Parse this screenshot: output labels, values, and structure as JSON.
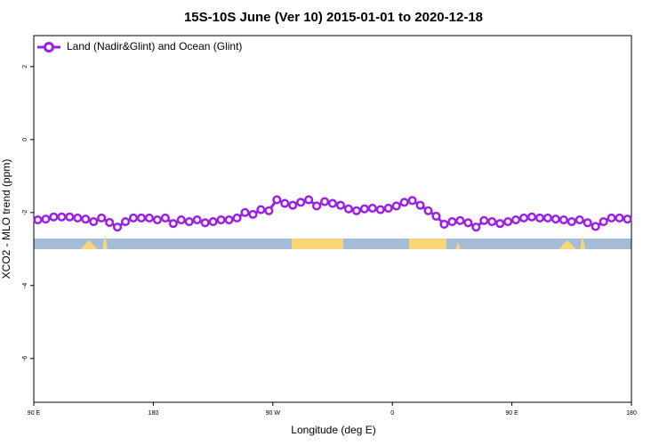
{
  "chart_data": {
    "type": "line",
    "title": "15S-10S June (Ver 10)   2015-01-01 to 2020-12-18",
    "x_label": "Longitude (deg E)",
    "y_label": "XCO2 - MLO trend (ppm)",
    "xlim": [
      90,
      540
    ],
    "ylim": [
      -7.2,
      2.85
    ],
    "xticks": [
      {
        "value": 90,
        "label": "90 E"
      },
      180,
      {
        "value": 270,
        "label": "90 W"
      },
      {
        "value": 360,
        "label": "0"
      },
      {
        "value": 450,
        "label": "90 E"
      },
      {
        "value": 540,
        "label": "180"
      }
    ],
    "yticks": [
      -6,
      -4,
      -2,
      0,
      2
    ],
    "legend": "top-left",
    "x": [
      93,
      99,
      105,
      111,
      117,
      123,
      129,
      135,
      141,
      147,
      153,
      159,
      165,
      171,
      177,
      183,
      189,
      195,
      201,
      207,
      213,
      219,
      225,
      231,
      237,
      243,
      249,
      255,
      261,
      267,
      273,
      279,
      285,
      291,
      297,
      303,
      309,
      315,
      321,
      327,
      333,
      339,
      345,
      351,
      357,
      363,
      369,
      375,
      381,
      387,
      393,
      399,
      405,
      411,
      417,
      423,
      429,
      435,
      441,
      447,
      453,
      459,
      465,
      471,
      477,
      483,
      489,
      495,
      501,
      507,
      513,
      519,
      525,
      531,
      537
    ],
    "series": [
      {
        "name": "Land (Nadir&Glint) and Ocean (Glint)",
        "color": "#9b1fe8",
        "values": [
          -2.2,
          -2.18,
          -2.12,
          -2.12,
          -2.12,
          -2.15,
          -2.18,
          -2.25,
          -2.15,
          -2.27,
          -2.4,
          -2.25,
          -2.15,
          -2.15,
          -2.15,
          -2.2,
          -2.15,
          -2.3,
          -2.2,
          -2.25,
          -2.2,
          -2.28,
          -2.25,
          -2.2,
          -2.2,
          -2.15,
          -2.0,
          -2.05,
          -1.92,
          -1.95,
          -1.65,
          -1.75,
          -1.8,
          -1.72,
          -1.65,
          -1.82,
          -1.7,
          -1.75,
          -1.8,
          -1.9,
          -1.95,
          -1.9,
          -1.88,
          -1.92,
          -1.88,
          -1.82,
          -1.72,
          -1.67,
          -1.8,
          -1.95,
          -2.1,
          -2.32,
          -2.25,
          -2.22,
          -2.28,
          -2.4,
          -2.22,
          -2.25,
          -2.3,
          -2.25,
          -2.2,
          -2.15,
          -2.12,
          -2.15,
          -2.15,
          -2.18,
          -2.2,
          -2.25,
          -2.2,
          -2.28,
          -2.38,
          -2.25,
          -2.15,
          -2.15,
          -2.18
        ]
      }
    ]
  }
}
